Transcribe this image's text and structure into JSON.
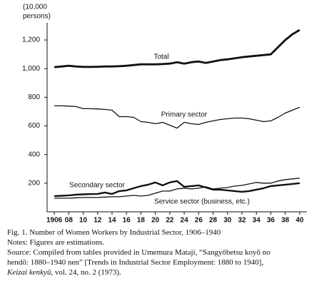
{
  "chart_data": {
    "type": "line",
    "y_label": [
      "(10,000",
      "persons)"
    ],
    "x": [
      1906,
      1907,
      1908,
      1909,
      1910,
      1911,
      1912,
      1913,
      1914,
      1915,
      1916,
      1917,
      1918,
      1919,
      1920,
      1921,
      1922,
      1923,
      1924,
      1925,
      1926,
      1927,
      1928,
      1929,
      1930,
      1931,
      1932,
      1933,
      1934,
      1935,
      1936,
      1937,
      1938,
      1939,
      1940
    ],
    "xlim": [
      1905,
      1941
    ],
    "xticks": [
      1906,
      {
        "value": 1908,
        "label": "08"
      },
      {
        "value": 1910,
        "label": "10"
      },
      {
        "value": 1912,
        "label": "12"
      },
      {
        "value": 1914,
        "label": "14"
      },
      {
        "value": 1916,
        "label": "16"
      },
      {
        "value": 1918,
        "label": "18"
      },
      {
        "value": 1920,
        "label": "20"
      },
      {
        "value": 1922,
        "label": "22"
      },
      {
        "value": 1924,
        "label": "24"
      },
      {
        "value": 1926,
        "label": "26"
      },
      {
        "value": 1928,
        "label": "28"
      },
      {
        "value": 1930,
        "label": "30"
      },
      {
        "value": 1932,
        "label": "32"
      },
      {
        "value": 1934,
        "label": "34"
      },
      {
        "value": 1936,
        "label": "36"
      },
      {
        "value": 1938,
        "label": "38"
      },
      {
        "value": 1940,
        "label": "40"
      }
    ],
    "ylim": [
      0,
      1300
    ],
    "yticks": [
      200,
      400,
      600,
      800,
      {
        "value": 1000,
        "label": "1,000"
      },
      {
        "value": 1200,
        "label": "1,200"
      }
    ],
    "series": [
      {
        "name": "Total",
        "color": "#111111",
        "values": [
          1010,
          1015,
          1020,
          1015,
          1012,
          1012,
          1013,
          1015,
          1015,
          1017,
          1020,
          1025,
          1030,
          1030,
          1030,
          1032,
          1035,
          1045,
          1035,
          1045,
          1050,
          1040,
          1050,
          1060,
          1065,
          1072,
          1080,
          1085,
          1090,
          1095,
          1100,
          1150,
          1200,
          1240,
          1270
        ]
      },
      {
        "name": "Primary sector",
        "color": "#111111",
        "values": [
          740,
          740,
          738,
          735,
          720,
          720,
          718,
          715,
          710,
          665,
          665,
          660,
          630,
          625,
          615,
          625,
          605,
          585,
          625,
          615,
          610,
          625,
          635,
          645,
          650,
          655,
          655,
          650,
          640,
          630,
          635,
          660,
          690,
          710,
          730
        ]
      },
      {
        "name": "Secondary sector",
        "color": "#111111",
        "values": [
          110,
          112,
          115,
          120,
          122,
          124,
          125,
          135,
          125,
          145,
          150,
          165,
          180,
          190,
          205,
          185,
          205,
          215,
          175,
          180,
          185,
          170,
          155,
          155,
          150,
          145,
          140,
          145,
          155,
          165,
          180,
          185,
          190,
          195,
          200
        ]
      },
      {
        "name": "Service sector (business, etc.)",
        "color": "#111111",
        "values": [
          95,
          95,
          95,
          98,
          100,
          100,
          100,
          103,
          105,
          105,
          110,
          115,
          110,
          115,
          130,
          145,
          145,
          160,
          165,
          160,
          165,
          175,
          160,
          165,
          170,
          180,
          185,
          195,
          205,
          200,
          200,
          215,
          225,
          230,
          235
        ]
      }
    ]
  },
  "caption": {
    "figure": "Fig. 1.  Number of Women Workers by Industrial Sector, 1906–1940",
    "notes": "Notes: Figures are estimations.",
    "source_lines": [
      "Source: Compiled from tables provided in Umemura Mataji, “Sangyōbetsu koyō no",
      "hendō: 1880–1940 nen” [Trends in Industrial Sector Employment: 1880 to 1940],"
    ],
    "journal": "Keizai kenkyū",
    "journal_rest": ", vol. 24, no. 2 (1973)."
  }
}
